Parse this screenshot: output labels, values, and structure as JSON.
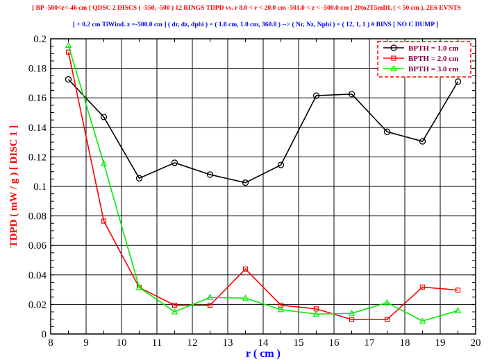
{
  "chart_data": {
    "type": "line",
    "title": "[ BP -500<z<-46 cm ] QDSC  2  DISCS  ( -550, -500 ) 12 RINGS  TDPD  vs. r   8.0 < r < 20.0 cm   -501.0 < z < -500.0 cm  [ 20to2T5mDL ( < 50 cm ), 2E6 EVNTS",
    "subtitle": "[  + 0.2 cm TiWind.  z =-500.0 cm ] ( dr, dz, dphi ) = ( 1.0 cm, 1.0 cm, 360.0 ) --> ( Nr, Nz, Nphi ) = ( 12, 1, 1 ) # BINS  [ NO  C  DUMP ]",
    "xlabel": "r ( cm )",
    "ylabel": "TDPD ( mW / g )  [ DISC  1 ]",
    "xlim": [
      8,
      20
    ],
    "ylim": [
      0,
      0.2
    ],
    "xticks": [
      "8",
      "9",
      "10",
      "11",
      "12",
      "13",
      "14",
      "15",
      "16",
      "17",
      "18",
      "19",
      "20"
    ],
    "yticks": [
      "0",
      "0.02",
      "0.04",
      "0.06",
      "0.08",
      "0.1",
      "0.12",
      "0.14",
      "0.16",
      "0.18",
      "0.2"
    ],
    "grid": true,
    "legend_position": "top-right",
    "x": [
      8.5,
      9.5,
      10.5,
      11.5,
      12.5,
      13.5,
      14.5,
      15.5,
      16.5,
      17.5,
      18.5,
      19.5
    ],
    "series": [
      {
        "name": "BPTH = 1.0 cm",
        "color": "#000000",
        "marker": "circle",
        "values": [
          0.1725,
          0.147,
          0.1055,
          0.116,
          0.108,
          0.1025,
          0.1145,
          0.1615,
          0.1625,
          0.137,
          0.1305,
          0.171
        ]
      },
      {
        "name": "BPTH = 2.0 cm",
        "color": "#ff0000",
        "marker": "square",
        "values": [
          0.191,
          0.0765,
          0.0315,
          0.0195,
          0.0195,
          0.044,
          0.0195,
          0.017,
          0.0098,
          0.0098,
          0.0318,
          0.0297
        ]
      },
      {
        "name": "BPTH = 3.0 cm",
        "color": "#00ee00",
        "marker": "triangle",
        "values": [
          0.1955,
          0.1155,
          0.0315,
          0.015,
          0.0248,
          0.0243,
          0.0165,
          0.0135,
          0.014,
          0.0212,
          0.0088,
          0.0158
        ]
      }
    ]
  }
}
